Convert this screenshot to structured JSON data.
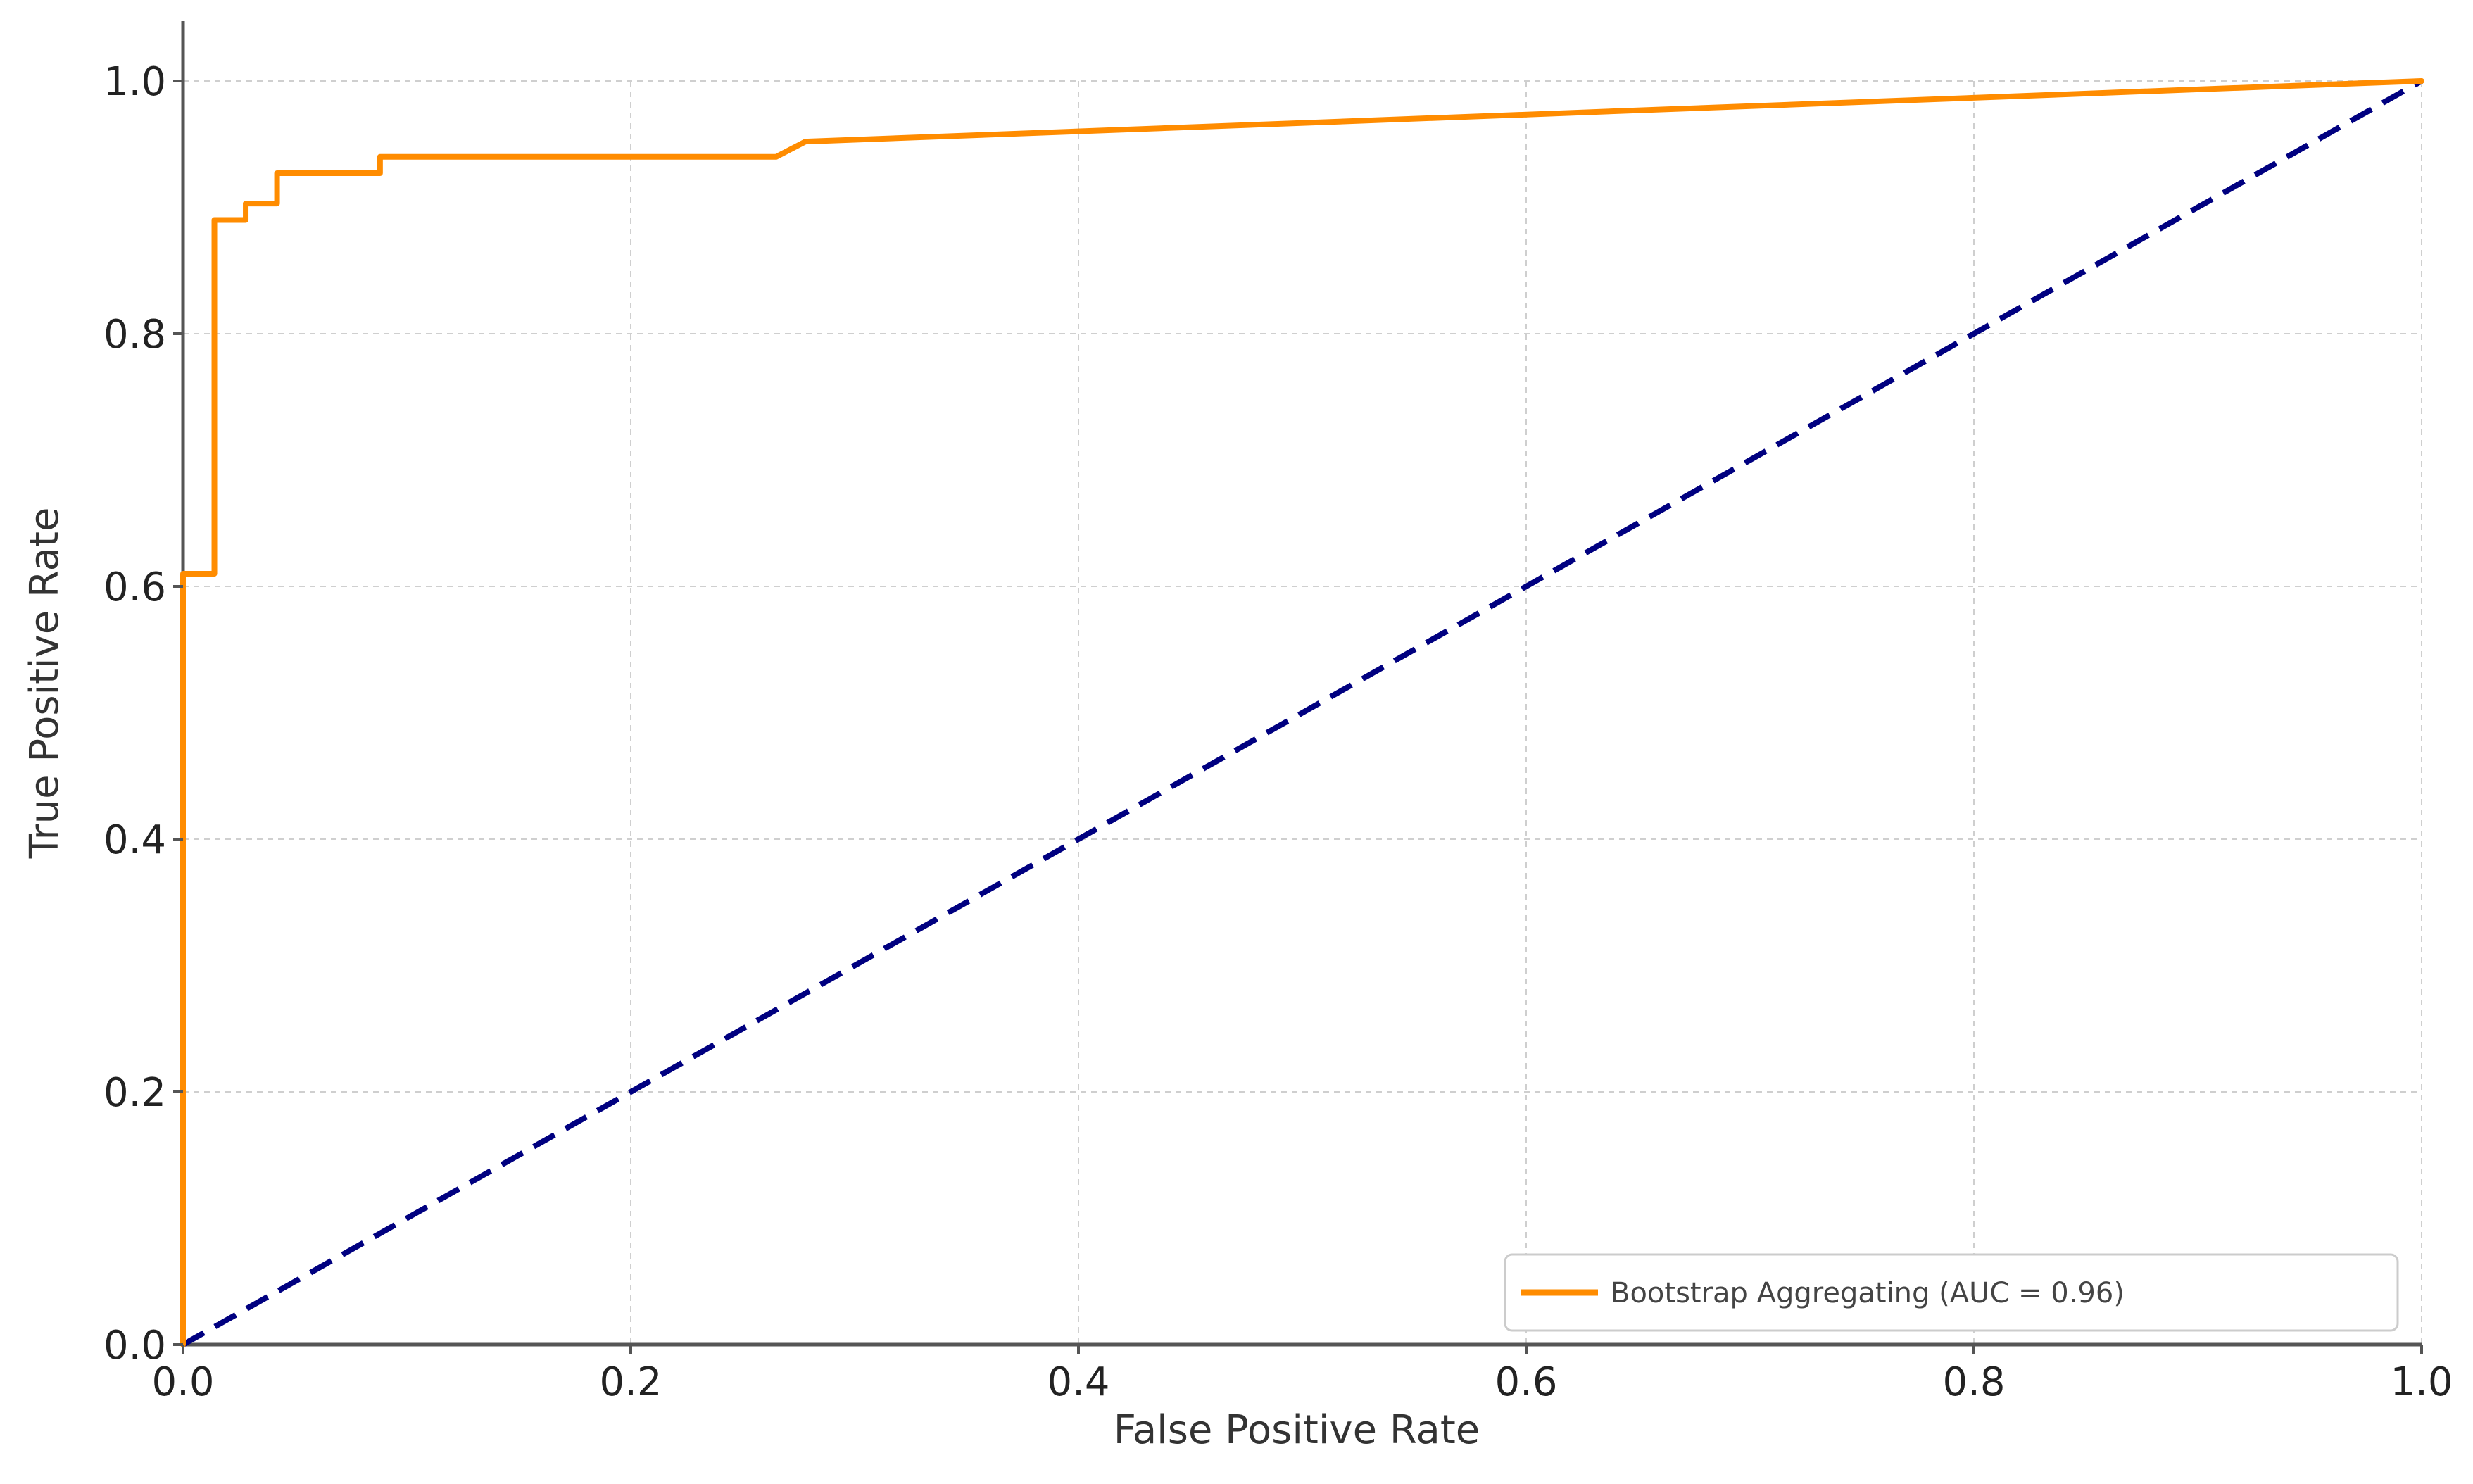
{
  "chart_data": {
    "type": "line",
    "title": "",
    "xlabel": "False Positive Rate",
    "ylabel": "True Positive Rate",
    "xlim": [
      0.0,
      1.0
    ],
    "ylim": [
      0.0,
      1.0
    ],
    "x_ticks": [
      "0.0",
      "0.2",
      "0.4",
      "0.6",
      "0.8",
      "1.0"
    ],
    "y_ticks": [
      "0.0",
      "0.2",
      "0.4",
      "0.6",
      "0.8",
      "1.0"
    ],
    "x_tick_values": [
      0.0,
      0.2,
      0.4,
      0.6,
      0.8,
      1.0
    ],
    "y_tick_values": [
      0.0,
      0.2,
      0.4,
      0.6,
      0.8,
      1.0
    ],
    "grid": true,
    "legend_position": "bottom-right",
    "series": [
      {
        "name": "Bootstrap Aggregating (AUC = 0.96)",
        "color": "#ff8c00",
        "x": [
          0.0,
          0.0,
          0.014,
          0.014,
          0.028,
          0.028,
          0.042,
          0.042,
          0.088,
          0.088,
          0.265,
          0.278,
          1.0
        ],
        "y": [
          0.0,
          0.61,
          0.61,
          0.89,
          0.89,
          0.903,
          0.903,
          0.927,
          0.927,
          0.94,
          0.94,
          0.952,
          1.0
        ]
      }
    ],
    "reference_line": {
      "color": "#000080",
      "x": [
        0.0,
        1.0
      ],
      "y": [
        0.0,
        1.0
      ]
    }
  }
}
